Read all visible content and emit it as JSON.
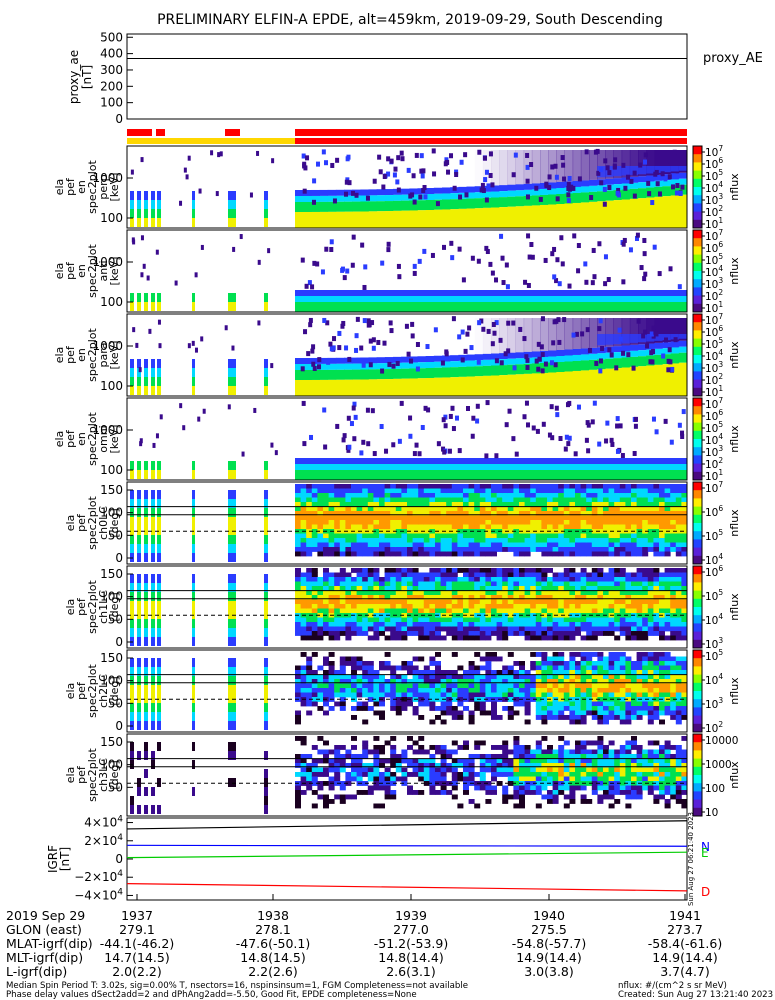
{
  "chart_data": {
    "type": "heatmap",
    "title": "PRELIMINARY ELFIN-A EPDE, alt=459km, 2019-09-29, South Descending",
    "top_panel": {
      "ylabel_lines": [
        "proxy_ae",
        "[nT]"
      ],
      "yticks": [
        "500",
        "400",
        "300",
        "200",
        "100",
        "0"
      ],
      "ylim": [
        0,
        520
      ],
      "value": 370,
      "legend": "proxy_AE"
    },
    "status_bar": {
      "colors": {
        "red": "#ff0000",
        "yellow": "#ffd700",
        "orange": "#ff9900"
      }
    },
    "panels": [
      {
        "id": "perp",
        "ylabel_lines": [
          "ela",
          "pef",
          "en",
          "spec2plot",
          "perp",
          "[keV]"
        ],
        "yticks": [
          "1000",
          "100"
        ],
        "cbar_ticks": [
          "10^7",
          "10^6",
          "10^5",
          "10^4",
          "10^3",
          "10^2",
          "10^1"
        ],
        "cbar_label": "nflux"
      },
      {
        "id": "anti",
        "ylabel_lines": [
          "ela",
          "pef",
          "en",
          "spec2plot",
          "anti",
          "[keV]"
        ],
        "yticks": [
          "1000",
          "100"
        ],
        "cbar_ticks": [
          "10^7",
          "10^6",
          "10^5",
          "10^4",
          "10^3",
          "10^2",
          "10^1"
        ],
        "cbar_label": "nflux"
      },
      {
        "id": "para",
        "ylabel_lines": [
          "ela",
          "pef",
          "en",
          "spec2plot",
          "para",
          "[keV]"
        ],
        "yticks": [
          "1000",
          "100"
        ],
        "cbar_ticks": [
          "10^7",
          "10^6",
          "10^5",
          "10^4",
          "10^3",
          "10^2",
          "10^1"
        ],
        "cbar_label": "nflux"
      },
      {
        "id": "omni",
        "ylabel_lines": [
          "ela",
          "pef",
          "en",
          "spec2plot",
          "omni",
          "[keV]"
        ],
        "yticks": [
          "1000",
          "100"
        ],
        "cbar_ticks": [
          "10^7",
          "10^6",
          "10^5",
          "10^4",
          "10^3",
          "10^2",
          "10^1"
        ],
        "cbar_label": "nflux"
      },
      {
        "id": "ch0LC",
        "ylabel_lines": [
          "ela",
          "pef",
          "spec2plot",
          "ch0LC",
          "[deg]"
        ],
        "yticks": [
          "150",
          "100",
          "50",
          "0"
        ],
        "cbar_ticks": [
          "10^7",
          "10^6",
          "10^5",
          "10^4"
        ],
        "cbar_label": "nflux"
      },
      {
        "id": "ch1LC",
        "ylabel_lines": [
          "ela",
          "pef",
          "spec2plot",
          "ch1LC",
          "[deg]"
        ],
        "yticks": [
          "150",
          "100",
          "50",
          "0"
        ],
        "cbar_ticks": [
          "10^6",
          "10^5",
          "10^4",
          "10^3"
        ],
        "cbar_label": "nflux"
      },
      {
        "id": "ch2LC",
        "ylabel_lines": [
          "ela",
          "pef",
          "spec2plot",
          "ch2LC",
          "[deg]"
        ],
        "yticks": [
          "150",
          "100",
          "50",
          "0"
        ],
        "cbar_ticks": [
          "10^5",
          "10^4",
          "10^3",
          "10^2"
        ],
        "cbar_label": "nflux"
      },
      {
        "id": "ch3LC",
        "ylabel_lines": [
          "ela",
          "pef",
          "spec2plot",
          "ch3LC",
          "[deg]"
        ],
        "yticks": [
          "150",
          "100",
          "50"
        ],
        "cbar_ticks": [
          "10000",
          "1000",
          "100",
          "10"
        ],
        "cbar_label": "nflux"
      }
    ],
    "igrf_panel": {
      "ylabel_lines": [
        "IGRF",
        "[nT]"
      ],
      "yticks": [
        "4×10^4",
        "2×10^4",
        "0",
        "−2×10^4",
        "−4×10^4"
      ],
      "ylim": [
        -45000,
        45000
      ],
      "components": [
        {
          "name": "N",
          "color": "#0000ff",
          "start": 15000,
          "end": 14000
        },
        {
          "name": "E",
          "color": "#00cc00",
          "start": 1500,
          "end": 7500
        },
        {
          "name": "D",
          "color": "#ff0000",
          "start": -27000,
          "end": -35000
        },
        {
          "name": "",
          "color": "#000000",
          "start": 33000,
          "end": 42000
        }
      ],
      "side_text": "Sun Aug 27 06:21:40 2023"
    },
    "x_tick_labels": [
      "1937",
      "1938",
      "1939",
      "1940",
      "1941"
    ],
    "colors": {
      "purple": "#3a0a8c",
      "blue": "#2a3cff",
      "cyan": "#00d8ff",
      "green": "#00e050",
      "yellow": "#f0f000",
      "orange": "#ff9900",
      "red": "#ff0000",
      "dark": "#1a0020"
    }
  },
  "footer": {
    "row_labels": [
      "2019 Sep 29",
      "GLON (east)",
      "MLAT-igrf(dip)",
      "MLT-igrf(dip)",
      "L-igrf(dip)"
    ],
    "time_labels": [
      "1937",
      "1938",
      "1939",
      "1940",
      "1941"
    ],
    "glon": [
      "279.1",
      "278.1",
      "277.0",
      "275.5",
      "273.7"
    ],
    "mlat": [
      "-44.1(-46.2)",
      "-47.6(-50.1)",
      "-51.2(-53.9)",
      "-54.8(-57.7)",
      "-58.4(-61.6)"
    ],
    "mlt": [
      "14.7(14.5)",
      "14.8(14.5)",
      "14.8(14.4)",
      "14.9(14.4)",
      "14.9(14.4)"
    ],
    "lval": [
      "2.0(2.2)",
      "2.2(2.6)",
      "2.6(3.1)",
      "3.0(3.8)",
      "3.7(4.7)"
    ],
    "note1": "Median Spin Period T: 3.02s, sig=0.00% T, nsectors=16, nspinsinsum=1, FGM Completeness=not available",
    "note2": "Phase delay values dSect2add=2 and dPhAng2add=-5.50, Good Fit, EPDE completeness=None",
    "units": "nflux: #/(cm^2 s sr MeV)",
    "created": "Created: Sun Aug 27 13:21:40 2023"
  }
}
